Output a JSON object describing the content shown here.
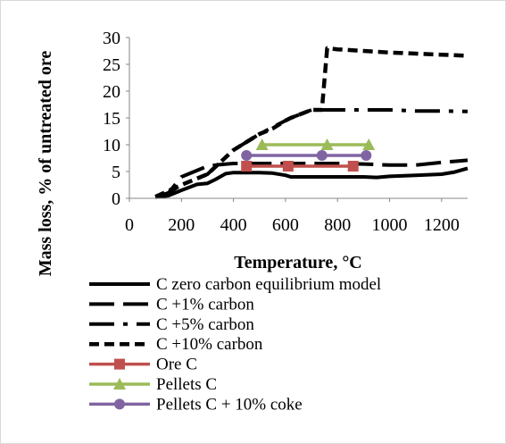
{
  "chart_data": {
    "type": "line",
    "xlabel": "Temperature, °C",
    "ylabel": "Mass loss, % of untreated ore",
    "xlim": [
      0,
      1300
    ],
    "ylim": [
      0,
      30
    ],
    "xticks": [
      0,
      200,
      400,
      600,
      800,
      1000,
      1200
    ],
    "yticks": [
      0,
      5,
      10,
      15,
      20,
      25,
      30
    ],
    "grid": false,
    "legend_position": "bottom",
    "series": [
      {
        "name": "C zero carbon equilibrium model",
        "style": "solid",
        "color": "#000000",
        "x": [
          100,
          150,
          200,
          260,
          300,
          330,
          370,
          400,
          500,
          550,
          600,
          620,
          650,
          700,
          800,
          900,
          950,
          1000,
          1100,
          1200,
          1250,
          1300
        ],
        "y": [
          0.2,
          0.5,
          1.5,
          2.6,
          2.8,
          3.5,
          4.6,
          4.8,
          4.8,
          4.7,
          4.3,
          4.0,
          4.0,
          4.0,
          4.0,
          4.0,
          3.9,
          4.1,
          4.3,
          4.5,
          4.9,
          5.6
        ]
      },
      {
        "name": "C +1% carbon",
        "style": "long-dash",
        "color": "#000000",
        "x": [
          100,
          150,
          200,
          300,
          350,
          400,
          450,
          500,
          600,
          700,
          800,
          900,
          1000,
          1100,
          1200,
          1300
        ],
        "y": [
          0.2,
          1.0,
          4.0,
          6.0,
          6.3,
          6.5,
          6.5,
          6.5,
          6.5,
          6.5,
          6.5,
          6.4,
          6.2,
          6.2,
          6.7,
          7.1
        ]
      },
      {
        "name": "C +5% carbon",
        "style": "dash-dot",
        "color": "#000000",
        "x": [
          100,
          150,
          200,
          250,
          300,
          400,
          500,
          600,
          620,
          700,
          750,
          800,
          900,
          1000,
          1100,
          1200,
          1300
        ],
        "y": [
          0.3,
          1.0,
          2.5,
          3.5,
          4.5,
          9.0,
          12.0,
          14.5,
          15.0,
          16.5,
          16.5,
          16.5,
          16.5,
          16.5,
          16.3,
          16.3,
          16.2
        ]
      },
      {
        "name": "C +10% carbon",
        "style": "short-dash",
        "color": "#000000",
        "x": [
          100,
          200,
          300,
          400,
          500,
          550,
          600,
          620,
          700,
          740,
          760,
          800,
          900,
          1000,
          1100,
          1200,
          1300
        ],
        "y": [
          0.3,
          2.5,
          4.5,
          9.0,
          12.0,
          13.0,
          14.5,
          15.0,
          16.5,
          16.5,
          28.0,
          27.8,
          27.5,
          27.2,
          27.0,
          26.8,
          26.6
        ]
      },
      {
        "name": "Ore C",
        "style": "marker-square",
        "color": "#c0504d",
        "x": [
          450,
          610,
          860
        ],
        "y": [
          6.0,
          6.0,
          6.0
        ]
      },
      {
        "name": "Pellets C",
        "style": "marker-triangle",
        "color": "#9bbb59",
        "x": [
          510,
          760,
          920
        ],
        "y": [
          10.0,
          10.0,
          10.0
        ]
      },
      {
        "name": "Pellets C + 10% coke",
        "style": "marker-circle",
        "color": "#8064a2",
        "x": [
          450,
          740,
          910
        ],
        "y": [
          8.0,
          8.0,
          8.0
        ]
      }
    ]
  }
}
